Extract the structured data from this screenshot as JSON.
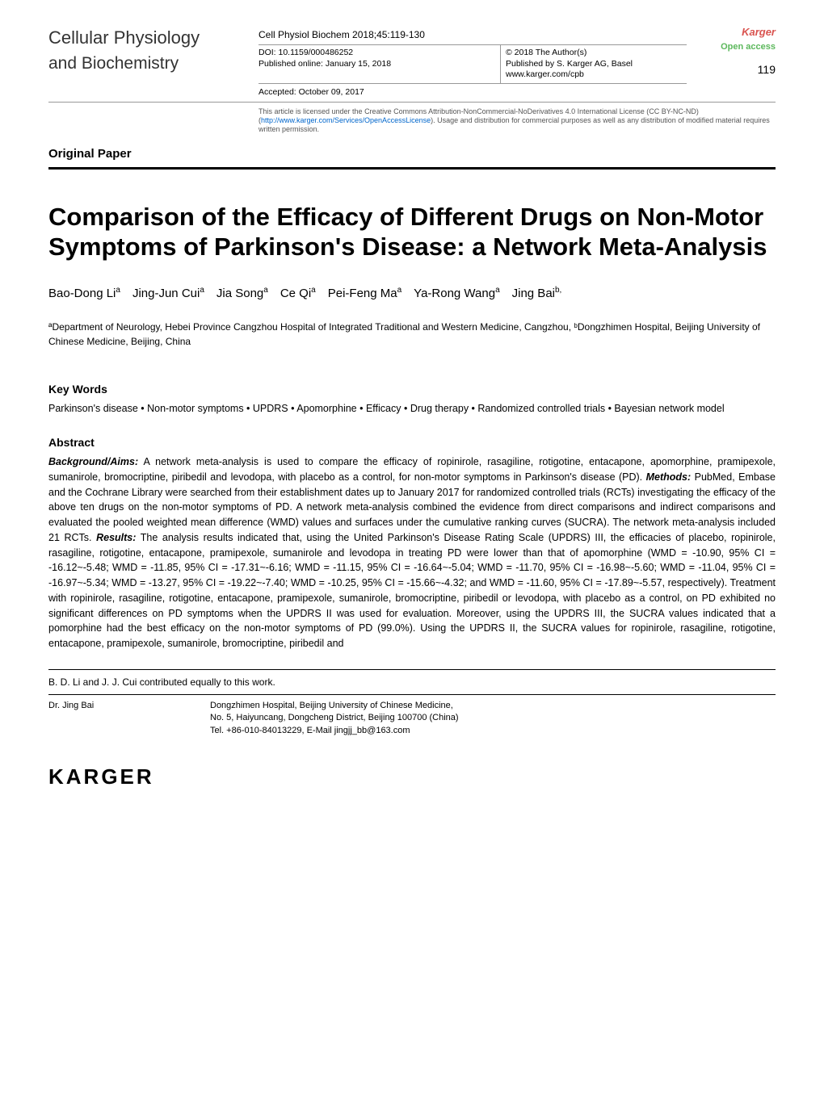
{
  "journal": {
    "line1": "Cellular Physiology",
    "line2": "and Biochemistry"
  },
  "citation": "Cell Physiol Biochem 2018;45:119-130",
  "doi": "DOI: 10.1159/000486252",
  "published_online": "Published online: January 15, 2018",
  "accepted": "Accepted: October 09, 2017",
  "copyright_line1": "© 2018 The Author(s)",
  "copyright_line2": "Published by S. Karger AG, Basel",
  "copyright_line3": "www.karger.com/cpb",
  "badge_line1": "Karger",
  "badge_line2": "Open access",
  "page_number": "119",
  "license_text_pre": "This article is licensed under the Creative Commons Attribution-NonCommercial-NoDerivatives 4.0 International License (CC BY-NC-ND) (",
  "license_link": "http://www.karger.com/Services/OpenAccessLicense",
  "license_text_post": "). Usage and distribution for commercial purposes as well as any distribution of modified material requires written permission.",
  "paper_type": "Original Paper",
  "title": "Comparison of the Efficacy of Different Drugs on Non-Motor Symptoms of Parkinson's Disease: a Network Meta-Analysis",
  "authors_html": "Bao-Dong Li<sup>a</sup> Jing-Jun Cui<sup>a</sup> Jia Song<sup>a</sup> Ce Qi<sup>a</sup> Pei-Feng Ma<sup>a</sup> Ya-Rong Wang<sup>a</sup> Jing Bai<sup>b,</sup>",
  "affiliations": "ªDepartment of Neurology, Hebei Province Cangzhou Hospital of Integrated Traditional and Western Medicine, Cangzhou, ᵇDongzhimen Hospital, Beijing University of Chinese Medicine, Beijing, China",
  "keywords_heading": "Key Words",
  "keywords": "Parkinson's disease • Non-motor symptoms • UPDRS • Apomorphine • Efficacy • Drug therapy • Randomized controlled trials • Bayesian network model",
  "abstract_heading": "Abstract",
  "abstract": {
    "background_label": "Background/Aims:",
    "background": " A network meta-analysis is used to compare the efficacy of ropinirole, rasagiline, rotigotine, entacapone, apomorphine, pramipexole, sumanirole, bromocriptine, piribedil and levodopa, with placebo as a control, for non-motor symptoms in Parkinson's disease (PD). ",
    "methods_label": "Methods:",
    "methods": " PubMed, Embase and the Cochrane Library were searched from their establishment dates up to January 2017 for randomized controlled trials (RCTs) investigating the efficacy of the above ten drugs on the non-motor symptoms of PD. A network meta-analysis combined the evidence from direct comparisons and indirect comparisons and evaluated the pooled weighted mean difference (WMD) values and surfaces under the cumulative ranking curves (SUCRA). The network meta-analysis included 21 RCTs. ",
    "results_label": "Results:",
    "results": " The analysis results indicated that, using the United Parkinson's Disease Rating Scale (UPDRS) III, the efficacies of placebo, ropinirole, rasagiline, rotigotine, entacapone, pramipexole, sumanirole and levodopa in treating PD were lower than that of apomorphine (WMD = -10.90, 95% CI = -16.12~-5.48; WMD = -11.85, 95% CI = -17.31~-6.16; WMD = -11.15, 95% CI = -16.64~-5.04; WMD = -11.70, 95% CI = -16.98~-5.60; WMD = -11.04, 95% CI = -16.97~-5.34; WMD = -13.27, 95% CI = -19.22~-7.40; WMD = -10.25, 95% CI = -15.66~-4.32; and WMD = -11.60, 95% CI = -17.89~-5.57, respectively). Treatment with ropinirole, rasagiline, rotigotine, entacapone, pramipexole, sumanirole, bromocriptine, piribedil or levodopa, with placebo as a control, on PD exhibited no significant differences on PD symptoms when the UPDRS II was used for evaluation. Moreover, using the UPDRS III, the SUCRA values indicated that a pomorphine had the best efficacy on the non-motor symptoms of PD (99.0%). Using the UPDRS II, the SUCRA values for ropinirole, rasagiline, rotigotine, entacapone, pramipexole, sumanirole, bromocriptine, piribedil and"
  },
  "equal_contrib": "B. D. Li and J. J. Cui contributed equally to this work.",
  "correspondence": {
    "label": "Dr. Jing Bai",
    "line1": "Dongzhimen Hospital, Beijing University of Chinese Medicine,",
    "line2": "No. 5, Haiyuncang, Dongcheng District, Beijing 100700 (China)",
    "line3": "Tel. +86-010-84013229, E-Mail jingjj_bb@163.com"
  },
  "publisher_logo": "KARGER"
}
